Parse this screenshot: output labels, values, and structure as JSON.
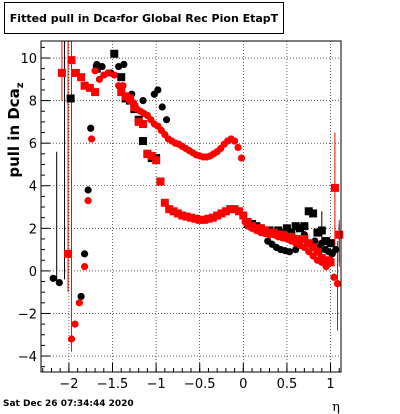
{
  "title": {
    "prefix": "Fitted pull in Dca",
    "sub": "z",
    "suffix": " for Global Rec Pion EtapT"
  },
  "date_stamp": "Sat Dec 26 07:34:44 2020",
  "chart_data": {
    "type": "scatter",
    "xlabel": "η",
    "ylabel": "pull in Dca",
    "ylabel_sub": "z",
    "xlim": [
      -2.32,
      1.12
    ],
    "ylim": [
      -4.75,
      10.8
    ],
    "grid": true,
    "xticks": [
      -2,
      -1.5,
      -1,
      -0.5,
      0,
      0.5,
      1
    ],
    "xtick_labels": [
      "−2",
      "−1.5",
      "−1",
      "−0.5",
      "0",
      "0.5",
      "1"
    ],
    "yticks": [
      -4,
      -2,
      0,
      2,
      4,
      6,
      8,
      10
    ],
    "ytick_labels": [
      "−4",
      "−2",
      "0",
      "2",
      "4",
      "6",
      "8",
      "10"
    ],
    "series": [
      {
        "color": "#000000",
        "marker": "circle",
        "points": [
          [
            -2.18,
            -0.35
          ],
          [
            -2.11,
            -0.55
          ],
          [
            -1.86,
            -1.2
          ],
          [
            -1.82,
            0.8
          ],
          [
            -1.78,
            3.8
          ],
          [
            -1.75,
            6.7
          ],
          [
            -1.68,
            9.7
          ],
          [
            -1.62,
            9.6
          ],
          [
            -1.52,
            9.3
          ],
          [
            -1.43,
            9.6
          ],
          [
            -1.37,
            9.7
          ],
          [
            -1.33,
            8.2
          ],
          [
            -1.28,
            8.3
          ],
          [
            -1.15,
            8.0
          ],
          [
            -1.02,
            8.3
          ],
          [
            -0.98,
            8.5
          ],
          [
            -0.93,
            7.7
          ],
          [
            -0.88,
            7.1
          ],
          [
            0.28,
            1.4
          ],
          [
            0.33,
            1.25
          ],
          [
            0.38,
            1.1
          ],
          [
            0.43,
            1.0
          ],
          [
            0.48,
            0.95
          ],
          [
            0.53,
            0.9
          ],
          [
            0.6,
            1.0
          ],
          [
            0.65,
            1.2
          ],
          [
            0.7,
            1.7
          ],
          [
            0.74,
            1.3
          ],
          [
            0.78,
            1.2
          ],
          [
            0.82,
            1.4
          ],
          [
            0.86,
            1.1
          ],
          [
            0.9,
            1.3
          ],
          [
            0.94,
            1.0
          ],
          [
            0.98,
            0.9
          ],
          [
            1.02,
            0.8
          ],
          [
            1.06,
            1.0
          ]
        ]
      },
      {
        "color": "#000000",
        "marker": "square",
        "points": [
          [
            -1.98,
            8.1
          ],
          [
            -1.68,
            9.5
          ],
          [
            -1.48,
            10.2
          ],
          [
            -1.4,
            9.1
          ],
          [
            -1.35,
            8.1
          ],
          [
            -1.3,
            8.0
          ],
          [
            -1.25,
            7.6
          ],
          [
            -1.2,
            7.1
          ],
          [
            -1.15,
            6.1
          ],
          [
            -1.1,
            5.5
          ],
          [
            -1.05,
            5.3
          ],
          [
            -1.0,
            5.3
          ],
          [
            -0.95,
            4.2
          ],
          [
            0.05,
            2.2
          ],
          [
            0.1,
            2.2
          ],
          [
            0.15,
            2.1
          ],
          [
            0.2,
            2.0
          ],
          [
            0.25,
            1.9
          ],
          [
            0.3,
            1.9
          ],
          [
            0.35,
            1.8
          ],
          [
            0.4,
            1.9
          ],
          [
            0.45,
            1.8
          ],
          [
            0.5,
            2.0
          ],
          [
            0.55,
            1.8
          ],
          [
            0.6,
            2.1
          ],
          [
            0.65,
            2.0
          ],
          [
            0.7,
            2.1
          ],
          [
            0.75,
            2.8
          ],
          [
            0.8,
            2.7
          ],
          [
            0.85,
            1.8
          ],
          [
            0.9,
            1.9
          ],
          [
            0.95,
            1.4
          ],
          [
            1.0,
            1.3
          ]
        ]
      },
      {
        "color": "#ff0000",
        "marker": "circle",
        "points": [
          [
            -1.97,
            -3.2
          ],
          [
            -1.93,
            -2.5
          ],
          [
            -1.88,
            -1.5
          ],
          [
            -1.82,
            0.2
          ],
          [
            -1.78,
            3.3
          ],
          [
            -1.74,
            6.2
          ],
          [
            -1.7,
            9.4
          ],
          [
            -1.65,
            9.0
          ],
          [
            -1.6,
            9.2
          ],
          [
            -1.55,
            9.3
          ],
          [
            -1.48,
            9.2
          ],
          [
            -1.43,
            8.7
          ],
          [
            -1.38,
            8.7
          ],
          [
            -1.3,
            8.0
          ],
          [
            -1.26,
            7.9
          ],
          [
            -1.22,
            7.6
          ],
          [
            -1.18,
            7.5
          ],
          [
            -1.14,
            7.4
          ],
          [
            -1.1,
            7.3
          ],
          [
            -1.06,
            7.1
          ],
          [
            -1.02,
            6.9
          ],
          [
            -0.98,
            6.8
          ],
          [
            -0.94,
            6.6
          ],
          [
            -0.9,
            6.4
          ],
          [
            -0.86,
            6.2
          ],
          [
            -0.82,
            6.1
          ],
          [
            -0.78,
            6.0
          ],
          [
            -0.74,
            5.95
          ],
          [
            -0.7,
            5.85
          ],
          [
            -0.66,
            5.75
          ],
          [
            -0.62,
            5.65
          ],
          [
            -0.58,
            5.55
          ],
          [
            -0.54,
            5.45
          ],
          [
            -0.5,
            5.4
          ],
          [
            -0.46,
            5.35
          ],
          [
            -0.42,
            5.35
          ],
          [
            -0.38,
            5.4
          ],
          [
            -0.34,
            5.5
          ],
          [
            -0.3,
            5.6
          ],
          [
            -0.26,
            5.75
          ],
          [
            -0.22,
            5.95
          ],
          [
            -0.18,
            6.1
          ],
          [
            -0.14,
            6.2
          ],
          [
            -0.1,
            6.1
          ],
          [
            -0.06,
            5.8
          ],
          [
            -0.02,
            5.3
          ],
          [
            0.02,
            2.3
          ],
          [
            0.06,
            2.1
          ],
          [
            0.1,
            2.0
          ],
          [
            0.15,
            1.9
          ],
          [
            0.2,
            1.8
          ],
          [
            0.25,
            1.75
          ],
          [
            0.3,
            1.7
          ],
          [
            0.35,
            1.7
          ],
          [
            0.4,
            1.6
          ],
          [
            0.45,
            1.55
          ],
          [
            0.5,
            1.5
          ],
          [
            0.55,
            1.4
          ],
          [
            0.6,
            1.3
          ],
          [
            0.65,
            1.2
          ],
          [
            0.7,
            1.1
          ],
          [
            0.75,
            0.9
          ],
          [
            0.8,
            0.7
          ],
          [
            0.85,
            0.5
          ],
          [
            0.9,
            0.4
          ],
          [
            0.95,
            0.2
          ],
          [
            1.0,
            0.5
          ],
          [
            1.04,
            -0.3
          ],
          [
            1.08,
            -0.6
          ]
        ]
      },
      {
        "color": "#ff0000",
        "marker": "square",
        "points": [
          [
            -2.08,
            9.3
          ],
          [
            -2.01,
            0.8
          ],
          [
            -1.97,
            9.9
          ],
          [
            -1.92,
            9.3
          ],
          [
            -1.86,
            9.1
          ],
          [
            -1.82,
            8.7
          ],
          [
            -1.76,
            8.6
          ],
          [
            -1.7,
            8.4
          ],
          [
            -1.4,
            8.4
          ],
          [
            -1.35,
            8.2
          ],
          [
            -1.3,
            8.1
          ],
          [
            -1.25,
            7.7
          ],
          [
            -1.2,
            7.0
          ],
          [
            -1.15,
            6.9
          ],
          [
            -1.1,
            5.5
          ],
          [
            -1.05,
            5.4
          ],
          [
            -1.0,
            5.2
          ],
          [
            -0.95,
            4.2
          ],
          [
            -0.9,
            3.2
          ],
          [
            -0.85,
            2.9
          ],
          [
            -0.8,
            2.8
          ],
          [
            -0.75,
            2.7
          ],
          [
            -0.7,
            2.6
          ],
          [
            -0.65,
            2.55
          ],
          [
            -0.6,
            2.5
          ],
          [
            -0.55,
            2.45
          ],
          [
            -0.5,
            2.4
          ],
          [
            -0.45,
            2.4
          ],
          [
            -0.4,
            2.45
          ],
          [
            -0.35,
            2.5
          ],
          [
            -0.3,
            2.6
          ],
          [
            -0.25,
            2.7
          ],
          [
            -0.2,
            2.8
          ],
          [
            -0.15,
            2.9
          ],
          [
            -0.1,
            2.9
          ],
          [
            -0.05,
            2.8
          ],
          [
            0.0,
            2.6
          ],
          [
            0.05,
            2.3
          ],
          [
            0.1,
            2.1
          ],
          [
            0.15,
            2.0
          ],
          [
            0.2,
            2.0
          ],
          [
            0.25,
            1.9
          ],
          [
            0.3,
            1.8
          ],
          [
            0.35,
            1.8
          ],
          [
            0.4,
            1.7
          ],
          [
            0.45,
            1.7
          ],
          [
            0.5,
            1.6
          ],
          [
            0.55,
            1.6
          ],
          [
            0.6,
            1.5
          ],
          [
            0.65,
            1.5
          ],
          [
            0.7,
            1.5
          ],
          [
            0.75,
            1.3
          ],
          [
            0.8,
            1.1
          ],
          [
            0.85,
            0.9
          ],
          [
            0.9,
            0.6
          ],
          [
            0.95,
            0.5
          ],
          [
            1.0,
            0.4
          ],
          [
            1.05,
            3.9
          ],
          [
            1.1,
            1.7
          ]
        ]
      }
    ],
    "error_bars": [
      {
        "color": "#000000",
        "x": -2.14,
        "y_low": -0.5,
        "y_high": 5.6
      },
      {
        "color": "#000000",
        "x": -2.05,
        "y_low": -0.4,
        "y_high": 10.8
      },
      {
        "color": "#ff0000",
        "x": -2.08,
        "y_low": 8.0,
        "y_high": 10.8
      },
      {
        "color": "#ff0000",
        "x": -2.01,
        "y_low": -1.0,
        "y_high": 10.8
      },
      {
        "color": "#ff0000",
        "x": -1.97,
        "y_low": -3.8,
        "y_high": 10.8
      },
      {
        "color": "#000000",
        "x": 0.9,
        "y_low": 0.5,
        "y_high": 2.8
      },
      {
        "color": "#ff0000",
        "x": 1.05,
        "y_low": 1.0,
        "y_high": 6.5
      },
      {
        "color": "#ff0000",
        "x": 1.08,
        "y_low": -2.8,
        "y_high": 1.4
      },
      {
        "color": "#000000",
        "x": 1.1,
        "y_low": 0.4,
        "y_high": 2.2
      },
      {
        "color": "#ff0000",
        "x": 1.1,
        "y_low": 0.2,
        "y_high": 2.4
      }
    ]
  }
}
